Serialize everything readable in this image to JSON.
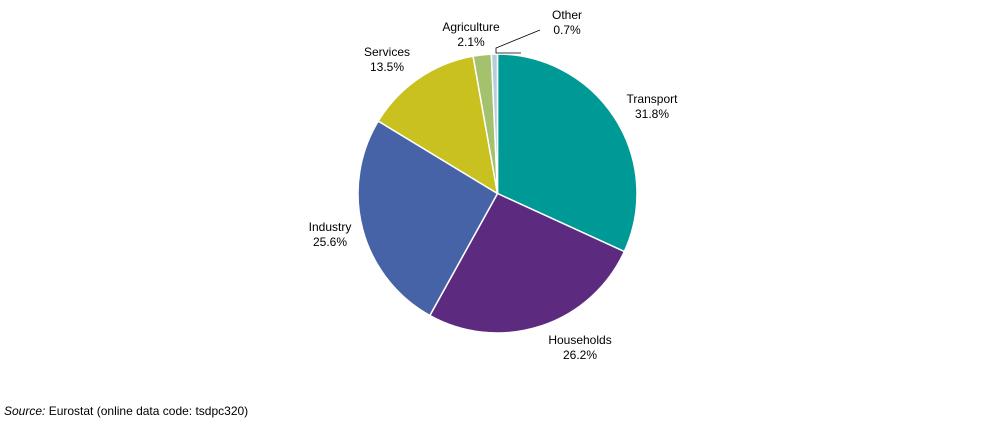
{
  "chart_data": {
    "type": "pie",
    "title": "",
    "categories": [
      "Transport",
      "Households",
      "Industry",
      "Services",
      "Agriculture",
      "Other"
    ],
    "values": [
      31.8,
      26.2,
      25.6,
      13.5,
      2.1,
      0.7
    ],
    "value_labels": [
      "31.8%",
      "26.2%",
      "25.6%",
      "13.5%",
      "2.1%",
      "0.7%"
    ],
    "colors": [
      "#009a96",
      "#5c2a7e",
      "#4563a6",
      "#c8c11f",
      "#a4c16d",
      "#b5ced9"
    ],
    "legend": "none",
    "start_angle": "12 o'clock",
    "direction": "clockwise"
  },
  "source": {
    "prefix": "Source:",
    "text": "Eurostat (online data code: tsdpc320)"
  }
}
